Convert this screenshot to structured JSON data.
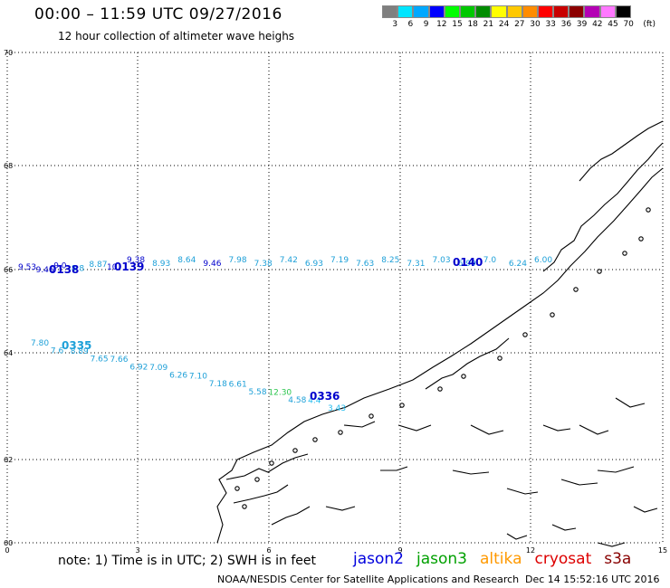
{
  "title": "00:00 – 11:59 UTC 09/27/2016",
  "subtitle": "12 hour collection of altimeter wave heighs",
  "colorbar": {
    "colors": [
      "#7f7f7f",
      "#00e5ff",
      "#00a8ff",
      "#0000ff",
      "#00ff00",
      "#00c800",
      "#008c00",
      "#ffff00",
      "#ffc800",
      "#ff8c00",
      "#ff0000",
      "#c80000",
      "#8c0000",
      "#b400b4",
      "#ff78ff",
      "#000000"
    ],
    "labels": [
      "3",
      "6",
      "9",
      "12",
      "15",
      "18",
      "21",
      "24",
      "27",
      "30",
      "33",
      "36",
      "39",
      "42",
      "45",
      "70"
    ],
    "unit": "(ft)"
  },
  "axes": {
    "x_ticks": [
      "0",
      "3",
      "6",
      "9",
      "12",
      "15"
    ],
    "y_ticks": [
      "60",
      "62",
      "64",
      "66",
      "68",
      "70"
    ]
  },
  "passes": [
    {
      "id": "0138",
      "color": "#0000cc",
      "readings": [
        "9.53",
        "9.46",
        "9.0",
        "8.8",
        "8.87",
        "10."
      ]
    },
    {
      "id": "0139",
      "color": "#0000cc",
      "readings": [
        "9.38",
        "8.93",
        "8.64",
        "9.46",
        "7.98",
        "7.38",
        "7.42",
        "6.93",
        "7.19",
        "7.63",
        "8.25",
        "7.31",
        "7.03",
        "6.99",
        "7.0",
        "6.24",
        "6.00"
      ]
    },
    {
      "id": "0140",
      "color": "#0000cc",
      "readings": []
    },
    {
      "id": "0335",
      "color": "#1ea0d8",
      "readings": [
        "7.80",
        "7.6",
        "8.89",
        "7.65",
        "7.66",
        "6.92",
        "7.09",
        "6.26",
        "7.10",
        "7.18",
        "6.61",
        "5.58",
        "12.30",
        "4.58",
        "4.4",
        "3.43"
      ]
    },
    {
      "id": "0336",
      "color": "#0000cc",
      "readings": []
    }
  ],
  "note": "note: 1) Time is in UTC; 2) SWH is in feet",
  "satellites": [
    {
      "name": "jason2",
      "color": "#0000dd"
    },
    {
      "name": "jason3",
      "color": "#00a000"
    },
    {
      "name": "altika",
      "color": "#ff9900"
    },
    {
      "name": "cryosat",
      "color": "#dd0000"
    },
    {
      "name": "s3a",
      "color": "#880000"
    }
  ],
  "credit": "NOAA/NESDIS Center for Satellite Applications and Research",
  "timestamp": "Dec 14 15:52:16 UTC 2016"
}
